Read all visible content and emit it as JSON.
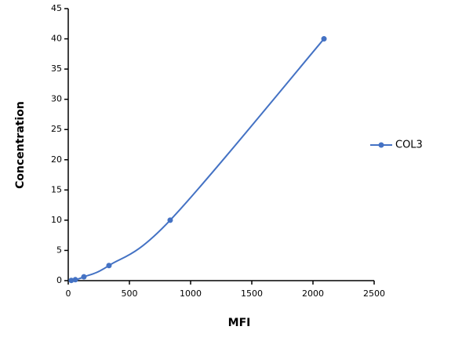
{
  "chart_data": {
    "type": "line",
    "x_label": "MFI",
    "y_label": "Concentration",
    "x": [
      25,
      58,
      128,
      333,
      833,
      2090
    ],
    "series": [
      {
        "name": "COL3",
        "color": "#4472c4",
        "values": [
          0.039,
          0.156,
          0.625,
          2.5,
          10,
          40
        ]
      }
    ],
    "xlim": [
      0,
      2500
    ],
    "xticks": [
      0,
      500,
      1000,
      1500,
      2000,
      2500
    ],
    "ylim": [
      0,
      45
    ],
    "yticks": [
      0,
      5,
      10,
      15,
      20,
      25,
      30,
      35,
      40,
      45
    ],
    "grid": false,
    "legend": "right"
  }
}
